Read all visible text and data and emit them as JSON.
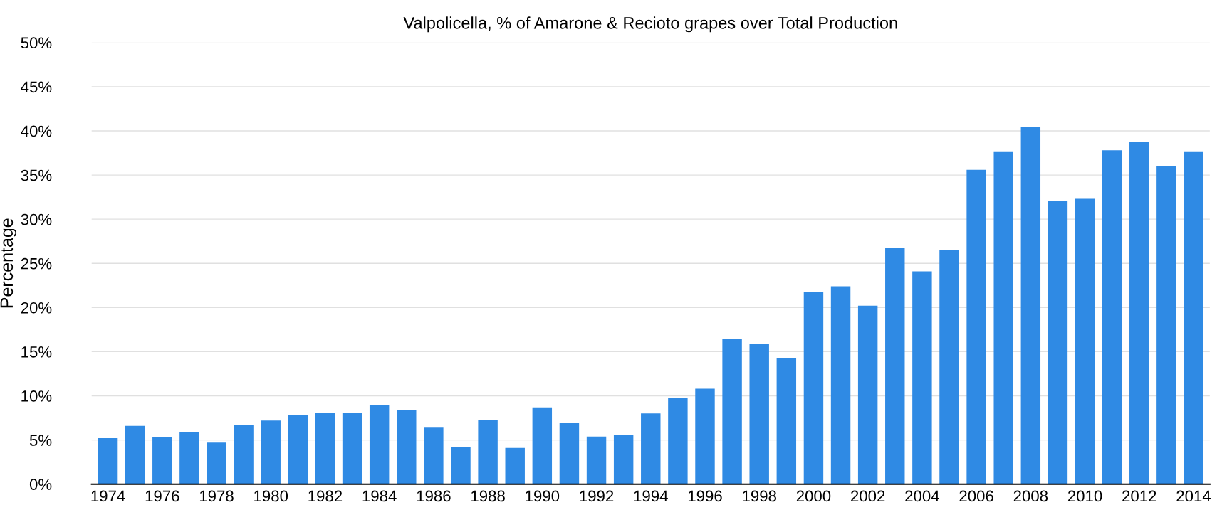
{
  "chart_data": {
    "type": "bar",
    "title": "Valpolicella, % of Amarone & Recioto grapes over Total Production",
    "ylabel": "Percentage",
    "categories": [
      "1974",
      null,
      "1976",
      null,
      "1978",
      null,
      "1980",
      null,
      "1982",
      null,
      "1984",
      null,
      "1986",
      null,
      "1988",
      null,
      "1990",
      null,
      "1992",
      null,
      "1994",
      null,
      "1996",
      null,
      "1998",
      null,
      "2000",
      null,
      "2002",
      null,
      "2004",
      null,
      "2006",
      null,
      "2008",
      null,
      "2010",
      null,
      "2012",
      null,
      "2014"
    ],
    "values": [
      5.2,
      6.6,
      5.3,
      5.9,
      4.7,
      6.7,
      7.2,
      7.8,
      8.1,
      8.1,
      9.0,
      8.4,
      6.4,
      4.2,
      7.3,
      4.1,
      8.7,
      6.9,
      5.4,
      5.6,
      8.0,
      9.8,
      10.8,
      16.4,
      15.9,
      14.3,
      21.8,
      22.4,
      20.2,
      26.8,
      24.1,
      26.5,
      35.6,
      37.6,
      40.4,
      32.1,
      32.3,
      37.8,
      38.8,
      36.0,
      37.6
    ],
    "color": "#2f8ae4",
    "ylim": [
      0,
      50
    ],
    "yticks": [
      {
        "value": 0,
        "label": "0%"
      },
      {
        "value": 5,
        "label": "5%"
      },
      {
        "value": 10,
        "label": "10%"
      },
      {
        "value": 15,
        "label": "15%"
      },
      {
        "value": 20,
        "label": "20%"
      },
      {
        "value": 25,
        "label": "25%"
      },
      {
        "value": 30,
        "label": "30%"
      },
      {
        "value": 35,
        "label": "35%"
      },
      {
        "value": 40,
        "label": "40%"
      },
      {
        "value": 45,
        "label": "45%"
      },
      {
        "value": 50,
        "label": "50%"
      }
    ],
    "grid": "y"
  }
}
